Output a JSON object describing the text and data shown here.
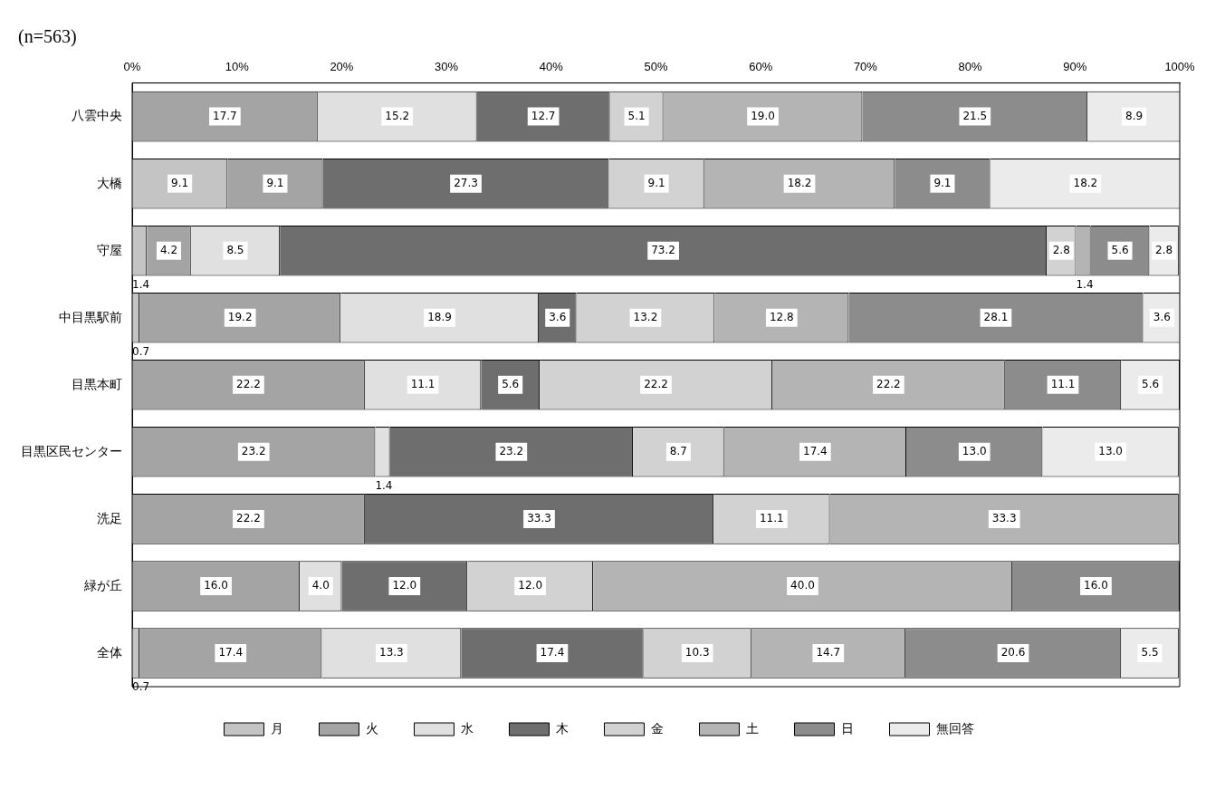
{
  "chart_data": {
    "type": "bar",
    "orientation": "horizontal",
    "stacked": true,
    "title": "(n=563)",
    "legend": "bottom",
    "categories": [
      "八雲中央",
      "大橋",
      "守屋",
      "中目黒駅前",
      "目黒本町",
      "目黒区民センター",
      "洗足",
      "緑が丘",
      "全体"
    ],
    "xlim": [
      0,
      100
    ],
    "xticks": [
      {
        "value": 0,
        "label": "0%"
      },
      {
        "value": 10,
        "label": "10%"
      },
      {
        "value": 20,
        "label": "20%"
      },
      {
        "value": 30,
        "label": "30%"
      },
      {
        "value": 40,
        "label": "40%"
      },
      {
        "value": 50,
        "label": "50%"
      },
      {
        "value": 60,
        "label": "60%"
      },
      {
        "value": 70,
        "label": "70%"
      },
      {
        "value": 80,
        "label": "80%"
      },
      {
        "value": 90,
        "label": "90%"
      },
      {
        "value": 100,
        "label": "100%"
      }
    ],
    "series": [
      {
        "name": "月",
        "color": "#c4c4c4",
        "values": [
          null,
          9.1,
          1.4,
          0.7,
          null,
          null,
          null,
          null,
          0.7
        ],
        "value_labels": [
          null,
          "9.1",
          "1.4",
          "0.7",
          null,
          null,
          null,
          null,
          "0.7"
        ]
      },
      {
        "name": "火",
        "color": "#a4a4a4",
        "values": [
          17.7,
          9.1,
          4.2,
          19.2,
          22.2,
          23.2,
          22.2,
          16.0,
          17.4
        ],
        "value_labels": [
          "17.7",
          "9.1",
          "4.2",
          "19.2",
          "22.2",
          "23.2",
          "22.2",
          "16.0",
          "17.4"
        ]
      },
      {
        "name": "水",
        "color": "#e0e0e0",
        "values": [
          15.2,
          null,
          8.5,
          18.9,
          11.1,
          1.4,
          null,
          4.0,
          13.3
        ],
        "value_labels": [
          "15.2",
          null,
          "8.5",
          "18.9",
          "11.1",
          "1.4",
          null,
          "4.0",
          "13.3"
        ]
      },
      {
        "name": "木",
        "color": "#6e6e6e",
        "values": [
          12.7,
          27.3,
          73.2,
          3.6,
          5.6,
          23.2,
          33.3,
          12.0,
          17.4
        ],
        "value_labels": [
          "12.7",
          "27.3",
          "73.2",
          "3.6",
          "5.6",
          "23.2",
          "33.3",
          "12.0",
          "17.4"
        ]
      },
      {
        "name": "金",
        "color": "#d2d2d2",
        "values": [
          5.1,
          9.1,
          2.8,
          13.2,
          22.2,
          8.7,
          11.1,
          12.0,
          10.3
        ],
        "value_labels": [
          "5.1",
          "9.1",
          "2.8",
          "13.2",
          "22.2",
          "8.7",
          "11.1",
          "12.0",
          "10.3"
        ]
      },
      {
        "name": "土",
        "color": "#b4b4b4",
        "values": [
          19.0,
          18.2,
          1.4,
          12.8,
          22.2,
          17.4,
          33.3,
          40.0,
          14.7
        ],
        "value_labels": [
          "19.0",
          "18.2",
          "1.4",
          "12.8",
          "22.2",
          "17.4",
          "33.3",
          "40.0",
          "14.7"
        ]
      },
      {
        "name": "日",
        "color": "#8c8c8c",
        "values": [
          21.5,
          9.1,
          5.6,
          28.1,
          11.1,
          13.0,
          null,
          16.0,
          20.6
        ],
        "value_labels": [
          "21.5",
          "9.1",
          "5.6",
          "28.1",
          "11.1",
          "13.0",
          null,
          "16.0",
          "20.6"
        ]
      },
      {
        "name": "無回答",
        "color": "#ebebeb",
        "values": [
          8.9,
          18.2,
          2.8,
          3.6,
          5.6,
          13.0,
          null,
          null,
          5.5
        ],
        "value_labels": [
          "8.9",
          "18.2",
          "2.8",
          "3.6",
          "5.6",
          "13.0",
          null,
          null,
          "5.5"
        ]
      }
    ]
  }
}
